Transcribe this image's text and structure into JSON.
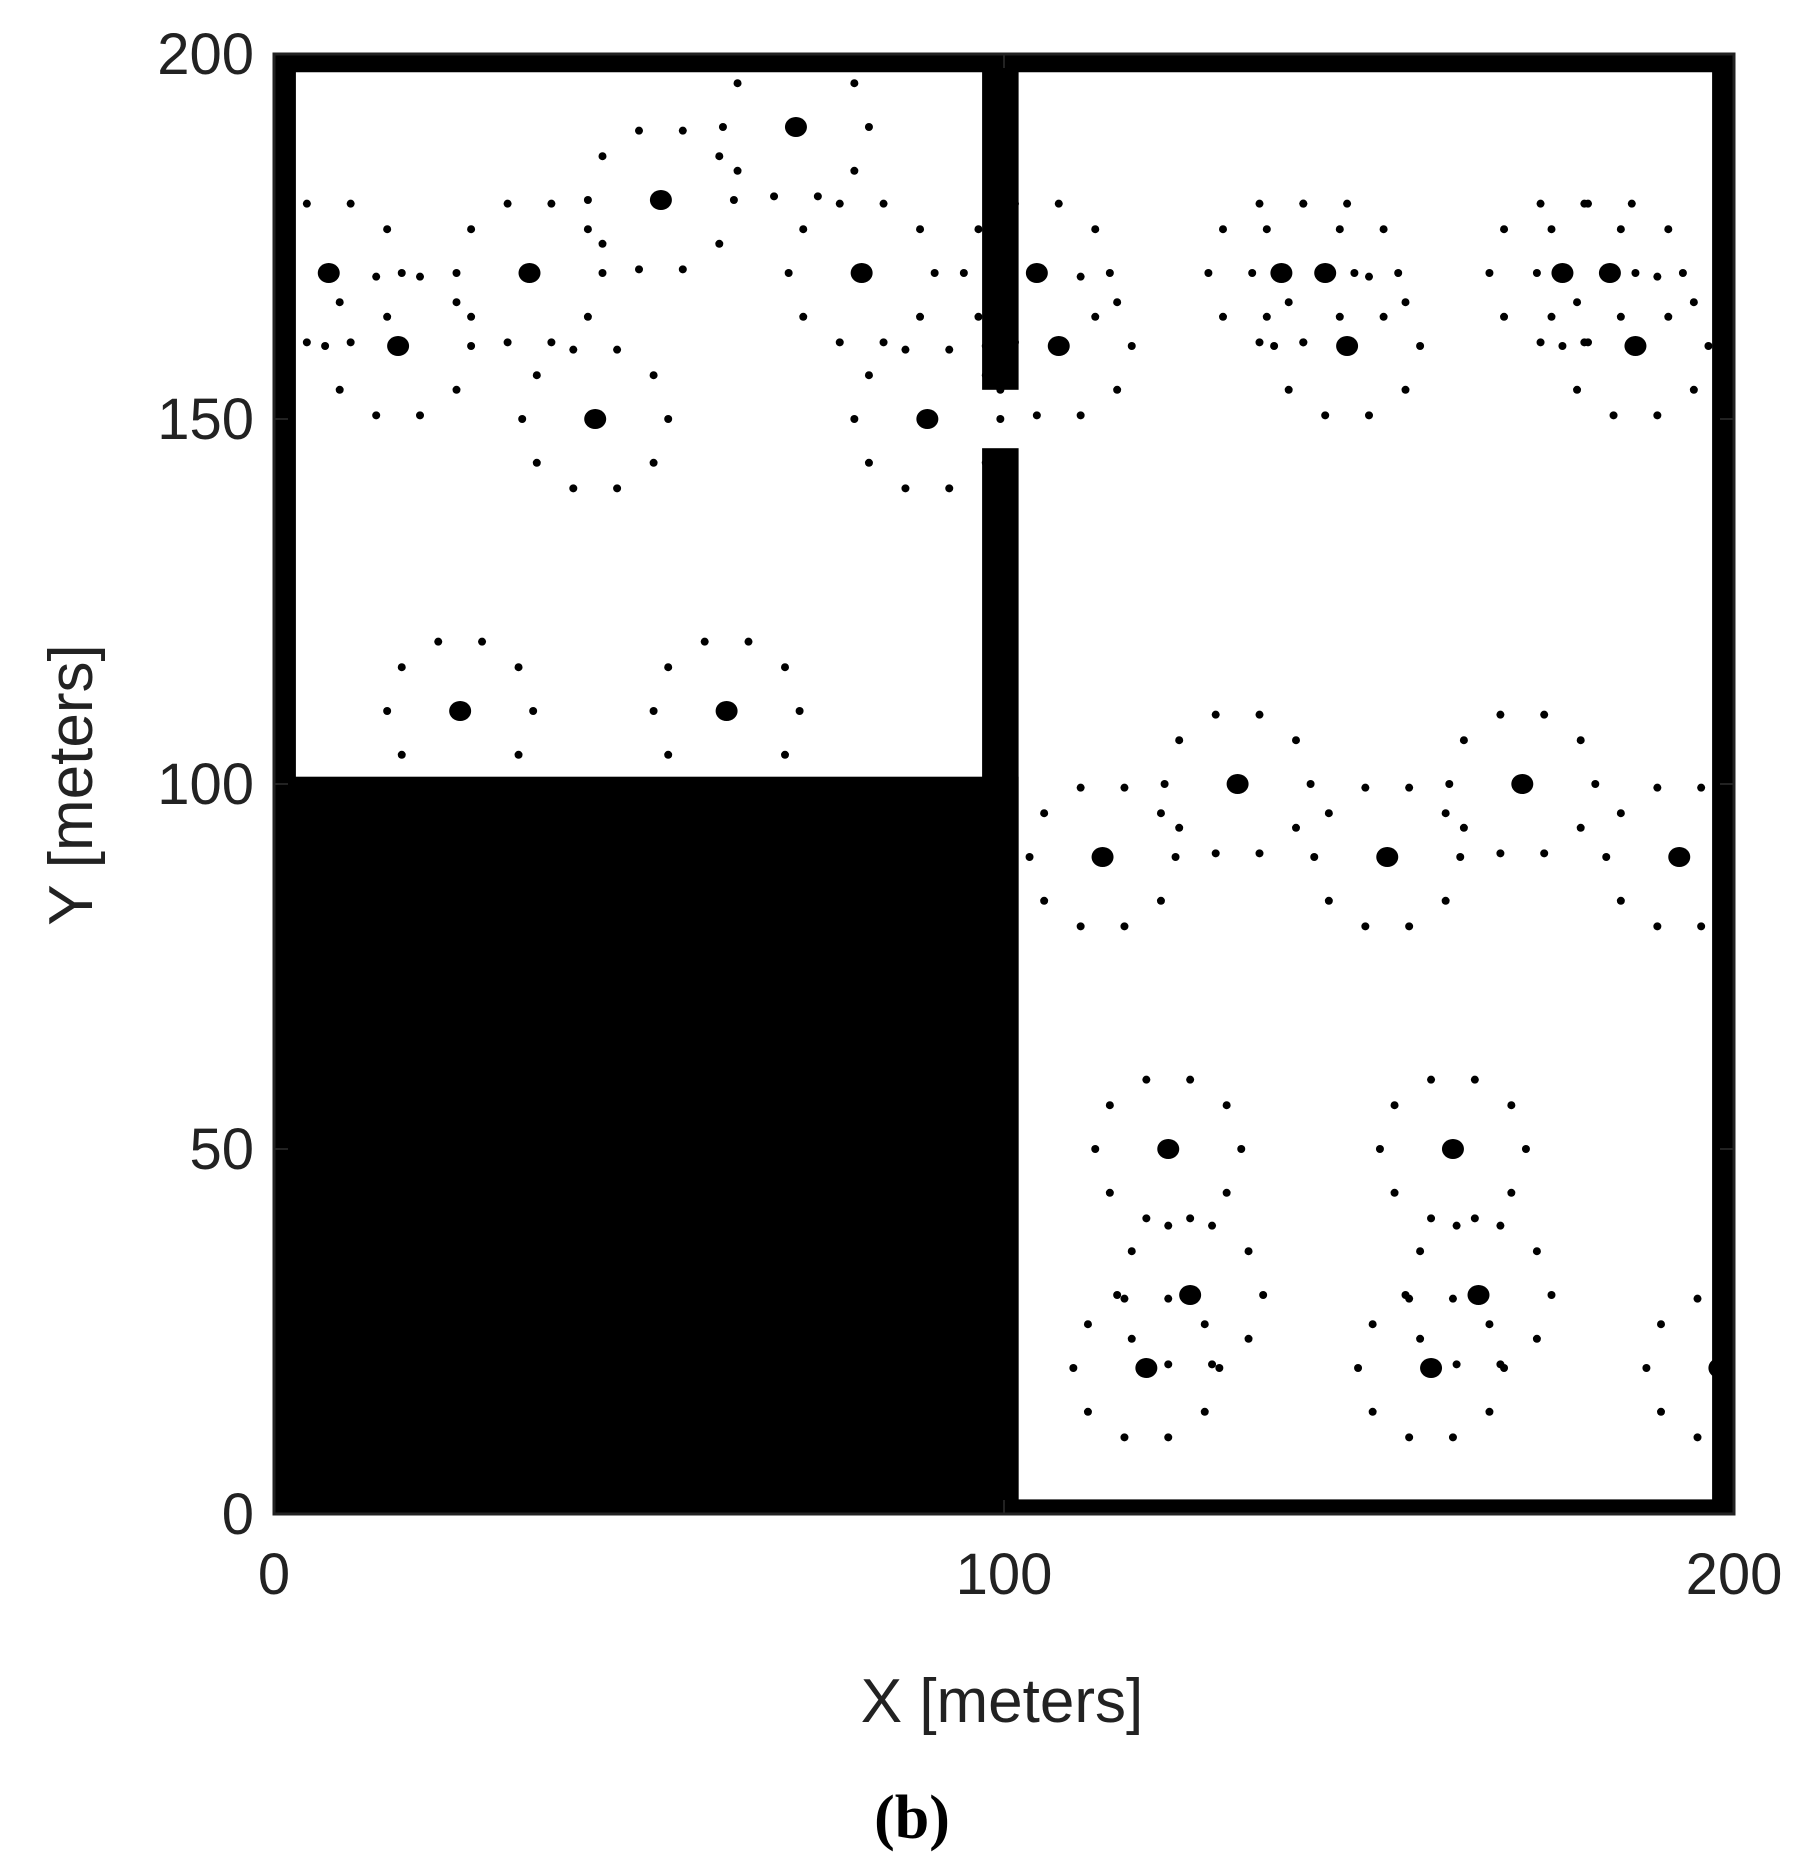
{
  "chart_data": {
    "type": "scatter",
    "xlabel": "X [meters]",
    "ylabel": "Y [meters]",
    "caption": "(b)",
    "xlim": [
      0,
      200
    ],
    "ylim": [
      0,
      200
    ],
    "xticks": [
      0,
      100,
      200
    ],
    "yticks": [
      0,
      50,
      100,
      150,
      200
    ],
    "obstacles": {
      "color": "#000000",
      "rects": [
        {
          "x": [
            0,
            3
          ],
          "y": [
            0,
            200
          ]
        },
        {
          "x": [
            197,
            200
          ],
          "y": [
            0,
            200
          ]
        },
        {
          "x": [
            0,
            200
          ],
          "y": [
            197.5,
            200
          ]
        },
        {
          "x": [
            0,
            200
          ],
          "y": [
            0,
            2
          ]
        },
        {
          "x": [
            97,
            102
          ],
          "y": [
            0,
            146
          ]
        },
        {
          "x": [
            97,
            102
          ],
          "y": [
            154,
            200
          ]
        },
        {
          "x": [
            0,
            102
          ],
          "y": [
            0,
            101
          ]
        }
      ]
    },
    "series": [
      {
        "color": "#000000",
        "x": [
          7.5,
          17,
          35,
          44,
          53,
          71.5,
          80.5,
          89.5,
          104.5,
          107.5,
          138,
          144,
          147,
          176.5,
          183,
          186.5,
          25.5,
          62,
          113.5,
          132,
          152.5,
          171,
          192.5,
          122.5,
          161.5,
          125.5,
          165,
          119.5,
          158.5,
          198
        ],
        "y": [
          170,
          160,
          170,
          150,
          180,
          190,
          170,
          150,
          170,
          160,
          170,
          170,
          160,
          170,
          170,
          160,
          110,
          110,
          90,
          100,
          90,
          100,
          90,
          50,
          50,
          30,
          30,
          20,
          20,
          20
        ]
      },
      {
        "color": "#000000",
        "x": [
          17.5,
          15.5,
          10.5,
          4.5,
          4.5,
          10.5,
          15.5,
          27,
          25,
          20,
          14,
          9,
          7,
          9,
          14,
          20,
          25,
          45,
          43,
          38,
          32,
          27,
          25,
          27,
          32,
          38,
          43,
          54,
          52,
          47,
          41,
          36,
          34,
          36,
          41,
          47,
          52,
          63,
          61,
          56,
          50,
          45,
          43,
          45,
          50,
          56,
          61,
          81.5,
          79.5,
          74.5,
          68.5,
          63.5,
          61.5,
          63.5,
          68.5,
          74.5,
          79.5,
          90.5,
          88.5,
          83.5,
          77.5,
          72.5,
          70.5,
          72.5,
          77.5,
          83.5,
          88.5,
          99.5,
          97.5,
          92.5,
          86.5,
          81.5,
          79.5,
          81.5,
          86.5,
          92.5,
          97.5,
          114.5,
          112.5,
          107.5,
          101.5,
          96.5,
          94.5,
          96.5,
          101.5,
          107.5,
          112.5,
          117.5,
          115.5,
          110.5,
          104.5,
          99.5,
          97.5,
          99.5,
          104.5,
          110.5,
          115.5,
          148,
          146,
          141,
          135,
          130,
          128,
          130,
          135,
          141,
          146,
          154,
          152,
          147,
          141,
          136,
          134,
          136,
          141,
          147,
          152,
          157,
          155,
          150,
          144,
          139,
          137,
          139,
          144,
          150,
          155,
          186.5,
          184.5,
          179.5,
          173.5,
          168.5,
          166.5,
          168.5,
          173.5,
          179.5,
          184.5,
          193,
          191,
          186,
          180,
          175,
          173,
          175,
          180,
          186,
          191,
          196.5,
          194.5,
          189.5,
          183.5,
          178.5,
          176.5,
          178.5,
          183.5,
          189.5,
          194.5,
          35.5,
          33.5,
          28.5,
          22.5,
          17.5,
          15.5,
          17.5,
          33.5,
          72,
          70,
          65,
          59,
          54,
          52,
          54,
          70,
          123.5,
          121.5,
          116.5,
          110.5,
          105.5,
          103.5,
          105.5,
          110.5,
          116.5,
          121.5,
          142,
          140,
          135,
          129,
          124,
          122,
          124,
          129,
          135,
          140,
          162.5,
          160.5,
          155.5,
          149.5,
          144.5,
          142.5,
          144.5,
          149.5,
          155.5,
          160.5,
          181,
          179,
          174,
          168,
          163,
          161,
          163,
          168,
          174,
          179,
          195.5,
          189.5,
          184.5,
          182.5,
          184.5,
          189.5,
          195.5,
          132.5,
          130.5,
          125.5,
          119.5,
          114.5,
          112.5,
          114.5,
          119.5,
          125.5,
          130.5,
          171.5,
          169.5,
          164.5,
          158.5,
          153.5,
          151.5,
          153.5,
          158.5,
          164.5,
          169.5,
          135.5,
          133.5,
          128.5,
          122.5,
          117.5,
          115.5,
          117.5,
          122.5,
          128.5,
          133.5,
          175,
          173,
          168,
          162,
          157,
          155,
          157,
          162,
          168,
          173,
          129.5,
          127.5,
          122.5,
          116.5,
          111.5,
          109.5,
          111.5,
          116.5,
          122.5,
          127.5,
          168.5,
          166.5,
          161.5,
          155.5,
          150.5,
          148.5,
          150.5,
          155.5,
          161.5,
          166.5,
          195,
          190,
          188,
          190,
          195
        ],
        "y": [
          170,
          176,
          179.5,
          179.5,
          160.5,
          160.5,
          164,
          160,
          166,
          169.5,
          169.5,
          166,
          160,
          154,
          150.5,
          150.5,
          154,
          170,
          176,
          179.5,
          179.5,
          176,
          170,
          164,
          160.5,
          160.5,
          164,
          150,
          156,
          159.5,
          159.5,
          156,
          150,
          144,
          140.5,
          140.5,
          144,
          180,
          186,
          189.5,
          189.5,
          186,
          180,
          174,
          170.5,
          170.5,
          174,
          190,
          196,
          199.5,
          199.5,
          196,
          190,
          184,
          180.5,
          180.5,
          184,
          170,
          176,
          179.5,
          179.5,
          176,
          170,
          164,
          160.5,
          160.5,
          164,
          150,
          156,
          159.5,
          159.5,
          156,
          150,
          144,
          140.5,
          140.5,
          144,
          170,
          176,
          179.5,
          179.5,
          176,
          170,
          164,
          160.5,
          160.5,
          164,
          160,
          166,
          169.5,
          169.5,
          166,
          160,
          154,
          150.5,
          150.5,
          154,
          170,
          176,
          179.5,
          179.5,
          176,
          170,
          164,
          160.5,
          160.5,
          164,
          170,
          176,
          179.5,
          179.5,
          176,
          170,
          164,
          160.5,
          160.5,
          164,
          160,
          166,
          169.5,
          169.5,
          166,
          160,
          154,
          150.5,
          150.5,
          154,
          170,
          176,
          179.5,
          179.5,
          176,
          170,
          164,
          160.5,
          160.5,
          164,
          170,
          176,
          179.5,
          179.5,
          176,
          170,
          164,
          160.5,
          160.5,
          164,
          160,
          166,
          169.5,
          169.5,
          166,
          160,
          154,
          150.5,
          150.5,
          154,
          110,
          116,
          119.5,
          119.5,
          116,
          110,
          104,
          104,
          110,
          116,
          119.5,
          119.5,
          116,
          110,
          104,
          104,
          90,
          96,
          99.5,
          99.5,
          96,
          90,
          84,
          80.5,
          80.5,
          84,
          100,
          106,
          109.5,
          109.5,
          106,
          100,
          94,
          90.5,
          90.5,
          94,
          90,
          96,
          99.5,
          99.5,
          96,
          90,
          84,
          80.5,
          80.5,
          84,
          100,
          106,
          109.5,
          109.5,
          106,
          100,
          94,
          90.5,
          90.5,
          94,
          99.5,
          99.5,
          96,
          90,
          84,
          80.5,
          80.5,
          50,
          56,
          59.5,
          59.5,
          56,
          50,
          44,
          40.5,
          40.5,
          44,
          50,
          56,
          59.5,
          59.5,
          56,
          50,
          44,
          40.5,
          40.5,
          44,
          30,
          36,
          39.5,
          39.5,
          36,
          30,
          24,
          20.5,
          20.5,
          24,
          30,
          36,
          39.5,
          39.5,
          36,
          30,
          24,
          20.5,
          20.5,
          24,
          20,
          26,
          29.5,
          29.5,
          26,
          20,
          14,
          10.5,
          10.5,
          14,
          20,
          26,
          29.5,
          29.5,
          26,
          20,
          14,
          10.5,
          10.5,
          14,
          29.5,
          26,
          20,
          14,
          10.5
        ]
      }
    ]
  }
}
